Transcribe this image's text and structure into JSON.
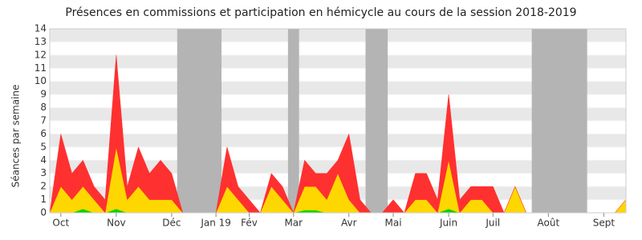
{
  "chart_data": {
    "type": "stacked-area",
    "title": "Présences en commissions et participation en hémicycle au cours de la session 2018-2019",
    "y_label": "Séances par semaine",
    "x": [
      0,
      1,
      2,
      3,
      4,
      5,
      6,
      7,
      8,
      9,
      10,
      11,
      12,
      13,
      14,
      15,
      16,
      17,
      18,
      19,
      20,
      21,
      22,
      23,
      24,
      25,
      26,
      27,
      28,
      29,
      30,
      31,
      32,
      33,
      34,
      35,
      36,
      37,
      38,
      39,
      40,
      41,
      42,
      43,
      44,
      45,
      46,
      47,
      48,
      49,
      50,
      51,
      52
    ],
    "xlim": [
      0,
      52
    ],
    "xticks": [
      {
        "value": 1,
        "label": "Oct"
      },
      {
        "value": 6,
        "label": "Nov"
      },
      {
        "value": 11,
        "label": "Déc"
      },
      {
        "value": 15,
        "label": "Jan 19"
      },
      {
        "value": 18,
        "label": "Fév"
      },
      {
        "value": 22,
        "label": "Mar"
      },
      {
        "value": 27,
        "label": "Avr"
      },
      {
        "value": 31,
        "label": "Mai"
      },
      {
        "value": 36,
        "label": "Juin"
      },
      {
        "value": 40,
        "label": "Juil"
      },
      {
        "value": 45,
        "label": "Août"
      },
      {
        "value": 50,
        "label": "Sept"
      }
    ],
    "ylim": [
      0,
      14
    ],
    "yticks": [
      0,
      1,
      2,
      3,
      4,
      5,
      6,
      7,
      8,
      9,
      10,
      11,
      12,
      13,
      14
    ],
    "shaded": [
      [
        11.5,
        15.5
      ],
      [
        21.5,
        22.5
      ],
      [
        28.5,
        30.5
      ],
      [
        43.5,
        48.5
      ]
    ],
    "shade_color": "#b4b4b4",
    "series": [
      {
        "color": "#00d400",
        "values": [
          0,
          0,
          0,
          0.3,
          0,
          0,
          0.3,
          0,
          0,
          0,
          0,
          0,
          0,
          0,
          0,
          0,
          0,
          0,
          0,
          0,
          0,
          0,
          0,
          0.2,
          0.2,
          0,
          0,
          0,
          0,
          0,
          0,
          0,
          0,
          0,
          0,
          0,
          0.3,
          0,
          0,
          0,
          0,
          0,
          0,
          0,
          0,
          0,
          0,
          0,
          0,
          0,
          0,
          0,
          0
        ]
      },
      {
        "color": "#ffd700",
        "values": [
          0,
          2,
          1,
          1.7,
          1,
          0,
          4.7,
          1,
          2,
          1,
          1,
          1,
          0,
          0,
          0,
          0,
          2,
          1,
          0,
          0,
          2,
          1,
          0,
          1.8,
          1.8,
          1,
          3,
          1,
          0,
          0,
          0,
          0,
          0,
          1,
          1,
          0,
          3.7,
          0,
          1,
          1,
          0,
          0,
          2,
          0,
          0,
          0,
          0,
          0,
          0,
          0,
          0,
          0,
          1
        ]
      },
      {
        "color": "#ff3030",
        "values": [
          0,
          4,
          2,
          2,
          1,
          1,
          7,
          1,
          3,
          2,
          3,
          2,
          0,
          0,
          0,
          0,
          3,
          1,
          1,
          0,
          1,
          1,
          0,
          2,
          1,
          2,
          1,
          5,
          1,
          0,
          0,
          1,
          0,
          2,
          2,
          1,
          5,
          1,
          1,
          1,
          2,
          0,
          0,
          0,
          0,
          0,
          0,
          0,
          0,
          0,
          0,
          0,
          0
        ]
      }
    ]
  }
}
